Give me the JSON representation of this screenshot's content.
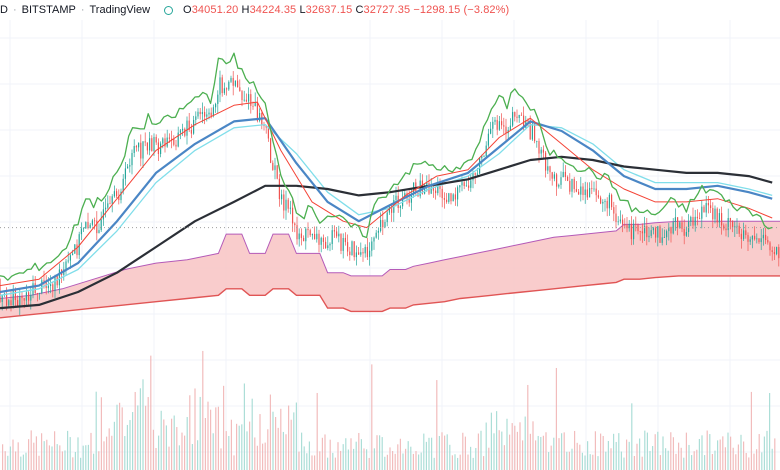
{
  "header": {
    "symbol_fragment": "D",
    "exchange": "BITSTAMP",
    "source": "TradingView",
    "open_label": "O",
    "open": "34051.20",
    "high_label": "H",
    "high": "34224.35",
    "low_label": "L",
    "low": "32637.15",
    "close_label": "C",
    "close": "32727.35",
    "change": "−1298.15 (−3.82%)"
  },
  "colors": {
    "price_line": "#4caf50",
    "candles_up": "#26a69a",
    "candles_down": "#ef5350",
    "ema_short": "#f44336",
    "ema_mid": "#4a86c5",
    "ema_light": "#80deea",
    "sma_long": "#2b2f36",
    "band_fill": "#f8c6c6",
    "band_upper": "#b45ab8",
    "band_lower": "#e05555",
    "volume": "#f0b0b0"
  },
  "chart_data": {
    "type": "line",
    "x_range": [
      0,
      100
    ],
    "y_range": [
      0,
      100
    ],
    "series": [
      {
        "key": "price",
        "values": [
          [
            0,
            22
          ],
          [
            2,
            23
          ],
          [
            4,
            25
          ],
          [
            6,
            27
          ],
          [
            8,
            30
          ],
          [
            10,
            40
          ],
          [
            11,
            48
          ],
          [
            12,
            45
          ],
          [
            14,
            50
          ],
          [
            16,
            60
          ],
          [
            17,
            70
          ],
          [
            18,
            68
          ],
          [
            19,
            72
          ],
          [
            20,
            70
          ],
          [
            22,
            72
          ],
          [
            24,
            76
          ],
          [
            26,
            80
          ],
          [
            27,
            78
          ],
          [
            28,
            90
          ],
          [
            29,
            88
          ],
          [
            30,
            92
          ],
          [
            31,
            86
          ],
          [
            32,
            84
          ],
          [
            33,
            80
          ],
          [
            34,
            76
          ],
          [
            35,
            64
          ],
          [
            36,
            55
          ],
          [
            37,
            50
          ],
          [
            38,
            44
          ],
          [
            39,
            42
          ],
          [
            40,
            45
          ],
          [
            41,
            40
          ],
          [
            42,
            42
          ],
          [
            44,
            40
          ],
          [
            46,
            37
          ],
          [
            47,
            36
          ],
          [
            48,
            45
          ],
          [
            50,
            50
          ],
          [
            52,
            55
          ],
          [
            54,
            58
          ],
          [
            56,
            57
          ],
          [
            58,
            55
          ],
          [
            60,
            58
          ],
          [
            62,
            68
          ],
          [
            63,
            75
          ],
          [
            64,
            78
          ],
          [
            65,
            76
          ],
          [
            66,
            82
          ],
          [
            67,
            78
          ],
          [
            68,
            75
          ],
          [
            69,
            72
          ],
          [
            70,
            62
          ],
          [
            72,
            60
          ],
          [
            74,
            57
          ],
          [
            76,
            55
          ],
          [
            78,
            53
          ],
          [
            80,
            46
          ],
          [
            81,
            44
          ],
          [
            82,
            43
          ],
          [
            84,
            42
          ],
          [
            86,
            46
          ],
          [
            88,
            44
          ],
          [
            90,
            50
          ],
          [
            92,
            49
          ],
          [
            93,
            46
          ],
          [
            95,
            44
          ],
          [
            97,
            42
          ],
          [
            99,
            38
          ]
        ]
      },
      {
        "key": "ema_short",
        "values": [
          [
            0,
            20
          ],
          [
            5,
            22
          ],
          [
            10,
            32
          ],
          [
            15,
            47
          ],
          [
            20,
            62
          ],
          [
            25,
            70
          ],
          [
            30,
            76
          ],
          [
            33,
            77
          ],
          [
            36,
            62
          ],
          [
            40,
            46
          ],
          [
            44,
            40
          ],
          [
            47,
            38
          ],
          [
            52,
            48
          ],
          [
            56,
            54
          ],
          [
            60,
            56
          ],
          [
            64,
            66
          ],
          [
            68,
            72
          ],
          [
            72,
            64
          ],
          [
            76,
            56
          ],
          [
            80,
            50
          ],
          [
            84,
            46
          ],
          [
            88,
            46
          ],
          [
            92,
            47
          ],
          [
            96,
            44
          ],
          [
            99,
            41
          ]
        ]
      },
      {
        "key": "ema_mid",
        "values": [
          [
            0,
            18
          ],
          [
            5,
            20
          ],
          [
            10,
            27
          ],
          [
            15,
            40
          ],
          [
            20,
            55
          ],
          [
            25,
            64
          ],
          [
            30,
            71
          ],
          [
            34,
            72
          ],
          [
            38,
            58
          ],
          [
            42,
            46
          ],
          [
            46,
            40
          ],
          [
            50,
            45
          ],
          [
            55,
            51
          ],
          [
            60,
            55
          ],
          [
            64,
            63
          ],
          [
            68,
            71
          ],
          [
            72,
            68
          ],
          [
            76,
            62
          ],
          [
            80,
            54
          ],
          [
            84,
            50
          ],
          [
            88,
            50
          ],
          [
            92,
            51
          ],
          [
            96,
            49
          ],
          [
            99,
            47
          ]
        ]
      },
      {
        "key": "ema_light",
        "values": [
          [
            0,
            17
          ],
          [
            5,
            19
          ],
          [
            10,
            25
          ],
          [
            15,
            37
          ],
          [
            20,
            52
          ],
          [
            25,
            62
          ],
          [
            30,
            69
          ],
          [
            34,
            70
          ],
          [
            38,
            61
          ],
          [
            42,
            49
          ],
          [
            46,
            42
          ],
          [
            50,
            44
          ],
          [
            55,
            50
          ],
          [
            60,
            54
          ],
          [
            64,
            61
          ],
          [
            68,
            70
          ],
          [
            72,
            69
          ],
          [
            76,
            64
          ],
          [
            80,
            56
          ],
          [
            84,
            52
          ],
          [
            88,
            52
          ],
          [
            92,
            52
          ],
          [
            96,
            50
          ],
          [
            99,
            48
          ]
        ]
      },
      {
        "key": "sma_long",
        "values": [
          [
            0,
            13
          ],
          [
            5,
            14
          ],
          [
            10,
            18
          ],
          [
            15,
            24
          ],
          [
            20,
            32
          ],
          [
            25,
            40
          ],
          [
            30,
            46
          ],
          [
            34,
            51
          ],
          [
            38,
            51
          ],
          [
            42,
            50
          ],
          [
            46,
            48
          ],
          [
            50,
            49
          ],
          [
            55,
            51
          ],
          [
            60,
            53
          ],
          [
            64,
            56
          ],
          [
            68,
            59
          ],
          [
            72,
            60
          ],
          [
            76,
            59
          ],
          [
            80,
            57
          ],
          [
            84,
            56
          ],
          [
            88,
            55
          ],
          [
            92,
            55
          ],
          [
            96,
            54
          ],
          [
            99,
            52
          ]
        ]
      }
    ],
    "band": {
      "upper": [
        [
          0,
          16
        ],
        [
          4,
          17
        ],
        [
          8,
          19
        ],
        [
          12,
          22
        ],
        [
          16,
          25
        ],
        [
          20,
          27
        ],
        [
          24,
          28
        ],
        [
          28,
          30
        ],
        [
          29,
          36
        ],
        [
          31,
          36
        ],
        [
          32,
          30
        ],
        [
          34,
          30
        ],
        [
          35,
          36
        ],
        [
          37,
          36
        ],
        [
          38,
          30
        ],
        [
          41,
          30
        ],
        [
          42,
          24
        ],
        [
          44,
          24
        ],
        [
          45,
          23
        ],
        [
          49,
          23
        ],
        [
          50,
          25
        ],
        [
          52,
          25
        ],
        [
          53,
          26
        ],
        [
          55,
          27
        ],
        [
          57,
          28
        ],
        [
          59,
          29
        ],
        [
          61,
          30
        ],
        [
          63,
          31
        ],
        [
          65,
          32
        ],
        [
          67,
          33
        ],
        [
          69,
          34
        ],
        [
          71,
          35
        ],
        [
          73,
          35.5
        ],
        [
          75,
          36
        ],
        [
          77,
          36.5
        ],
        [
          79,
          37
        ],
        [
          80,
          39
        ],
        [
          82,
          39
        ],
        [
          84,
          39.5
        ],
        [
          87,
          40
        ],
        [
          90,
          40
        ],
        [
          95,
          40
        ],
        [
          100,
          40
        ]
      ],
      "lower": [
        [
          0,
          10
        ],
        [
          4,
          11
        ],
        [
          8,
          12
        ],
        [
          12,
          13
        ],
        [
          16,
          14
        ],
        [
          20,
          15
        ],
        [
          24,
          16
        ],
        [
          28,
          17
        ],
        [
          29,
          19
        ],
        [
          31,
          19
        ],
        [
          32,
          17
        ],
        [
          34,
          17
        ],
        [
          35,
          19
        ],
        [
          37,
          19
        ],
        [
          38,
          17
        ],
        [
          41,
          17
        ],
        [
          42,
          13
        ],
        [
          44,
          13
        ],
        [
          45,
          12
        ],
        [
          49,
          12
        ],
        [
          50,
          13
        ],
        [
          52,
          13
        ],
        [
          53,
          14
        ],
        [
          55,
          14.5
        ],
        [
          57,
          15
        ],
        [
          59,
          16
        ],
        [
          61,
          16.5
        ],
        [
          63,
          17
        ],
        [
          65,
          17.5
        ],
        [
          67,
          18
        ],
        [
          69,
          18.5
        ],
        [
          71,
          19
        ],
        [
          73,
          19.5
        ],
        [
          75,
          20
        ],
        [
          77,
          20.5
        ],
        [
          79,
          21
        ],
        [
          80,
          22
        ],
        [
          82,
          22
        ],
        [
          84,
          22.5
        ],
        [
          87,
          23
        ],
        [
          90,
          23
        ],
        [
          95,
          23
        ],
        [
          100,
          23
        ]
      ]
    }
  }
}
